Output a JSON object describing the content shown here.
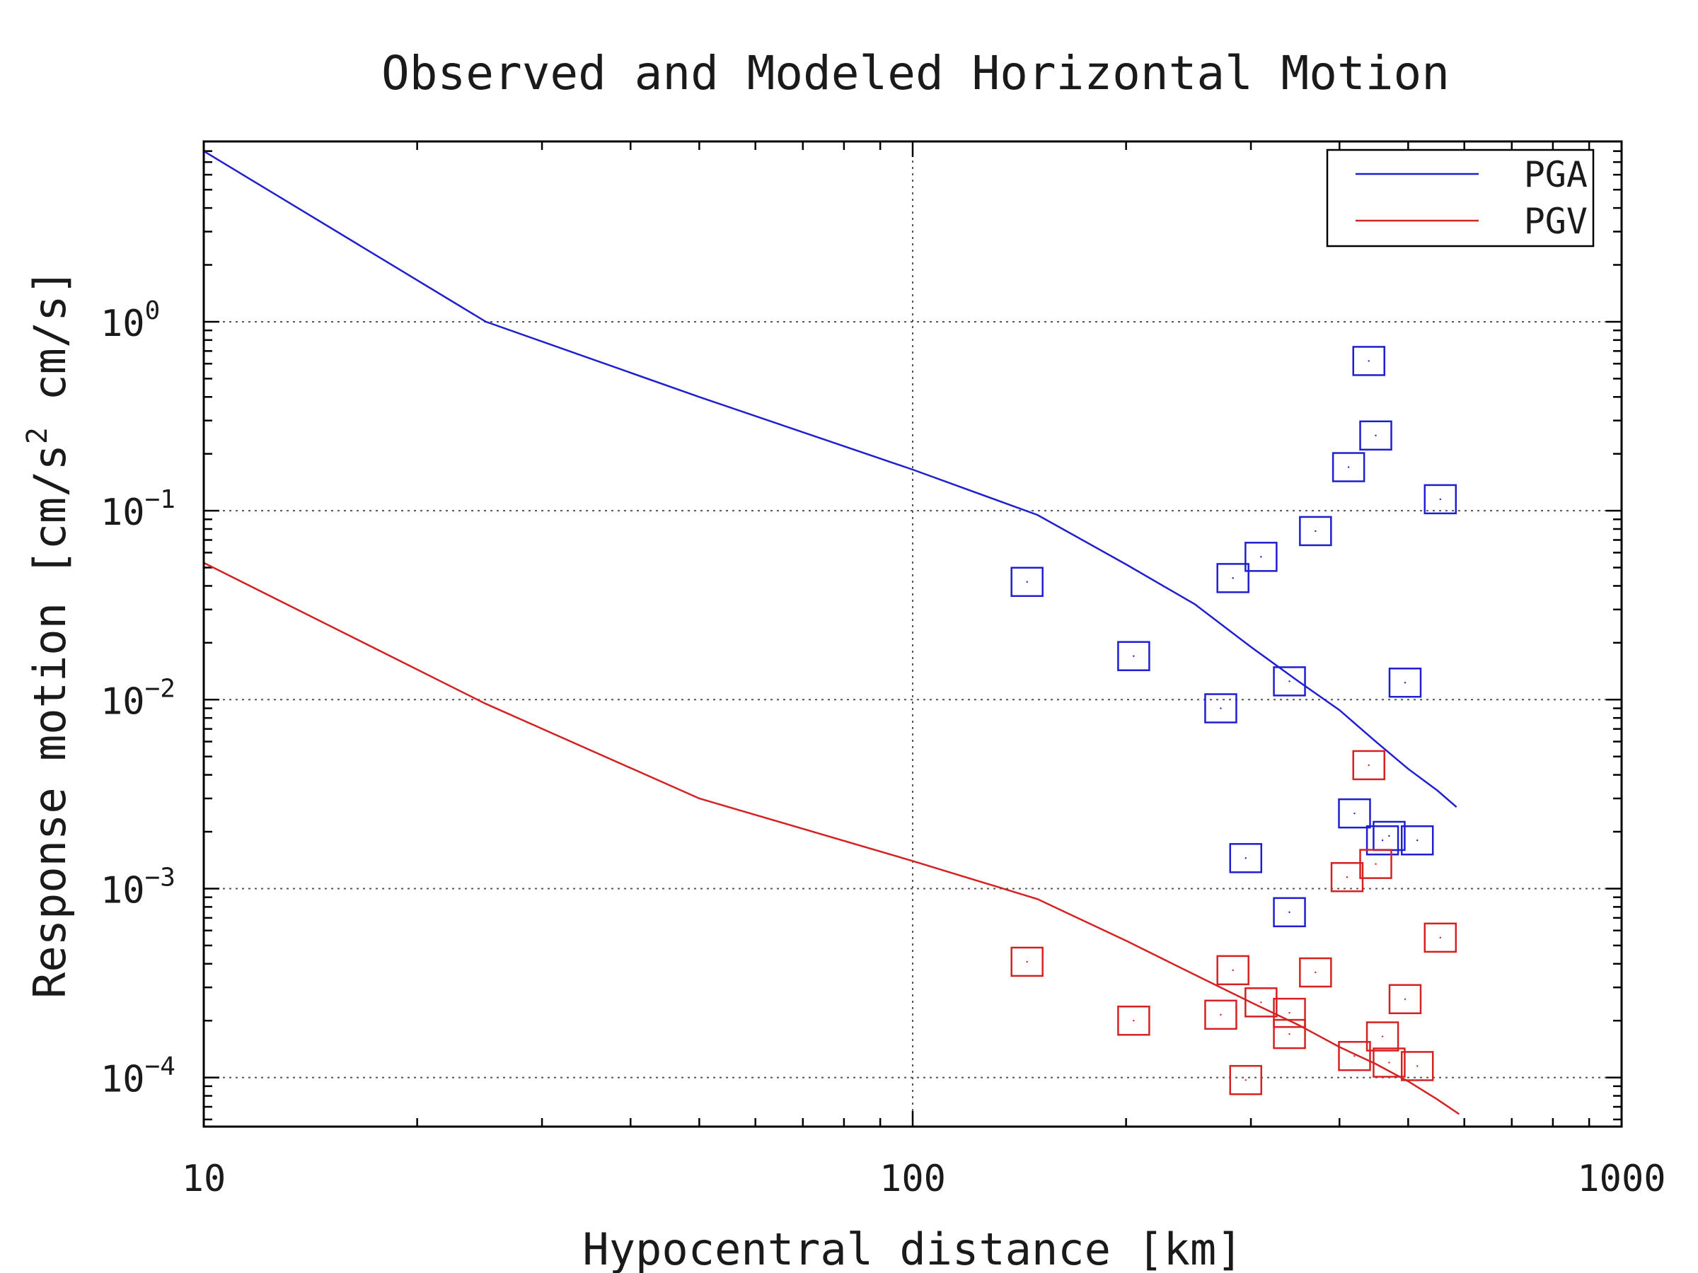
{
  "chart_data": {
    "type": "scatter",
    "title": "Observed and Modeled Horizontal Motion",
    "xlabel": "Hypocentral distance [km]",
    "ylabel": {
      "pre": "Response motion  [cm/s",
      "sup": "2",
      "post": "  cm/s]"
    },
    "x_scale": "log",
    "y_scale": "log",
    "xlim": [
      10,
      1000
    ],
    "ylim": [
      5.5e-05,
      9
    ],
    "grid": true,
    "legend_position": "top-right",
    "x_ticks": [
      {
        "value": 10,
        "label": "10"
      },
      {
        "value": 100,
        "label": "100"
      },
      {
        "value": 1000,
        "label": "1000"
      }
    ],
    "y_ticks": [
      {
        "value": 1,
        "base": "10",
        "exp": "0"
      },
      {
        "value": 0.1,
        "base": "10",
        "exp": "−1"
      },
      {
        "value": 0.01,
        "base": "10",
        "exp": "−2"
      },
      {
        "value": 0.001,
        "base": "10",
        "exp": "−3"
      },
      {
        "value": 0.0001,
        "base": "10",
        "exp": "−4"
      }
    ],
    "series": [
      {
        "name": "PGA",
        "color": "#1f1fcf",
        "line": [
          [
            10,
            8.0
          ],
          [
            25,
            1.0
          ],
          [
            50,
            0.4
          ],
          [
            100,
            0.165
          ],
          [
            150,
            0.095
          ],
          [
            200,
            0.052
          ],
          [
            250,
            0.032
          ],
          [
            300,
            0.019
          ],
          [
            350,
            0.0125
          ],
          [
            400,
            0.0088
          ],
          [
            450,
            0.006
          ],
          [
            500,
            0.0043
          ],
          [
            550,
            0.0033
          ],
          [
            585,
            0.0027
          ]
        ],
        "observed": [
          [
            145,
            0.042
          ],
          [
            205,
            0.017
          ],
          [
            272,
            0.009
          ],
          [
            283,
            0.044
          ],
          [
            310,
            0.057
          ],
          [
            340,
            0.0125
          ],
          [
            370,
            0.078
          ],
          [
            412,
            0.17
          ],
          [
            440,
            0.62
          ],
          [
            450,
            0.25
          ],
          [
            555,
            0.115
          ],
          [
            495,
            0.0123
          ],
          [
            420,
            0.0025
          ],
          [
            460,
            0.0018
          ],
          [
            470,
            0.0019
          ],
          [
            515,
            0.0018
          ],
          [
            295,
            0.00145
          ],
          [
            340,
            0.00075
          ]
        ]
      },
      {
        "name": "PGV",
        "color": "#d42222",
        "line": [
          [
            10,
            0.053
          ],
          [
            25,
            0.0095
          ],
          [
            50,
            0.003
          ],
          [
            100,
            0.0014
          ],
          [
            150,
            0.00088
          ],
          [
            200,
            0.00053
          ],
          [
            250,
            0.00035
          ],
          [
            300,
            0.00025
          ],
          [
            350,
            0.00019
          ],
          [
            400,
            0.000145
          ],
          [
            450,
            0.000118
          ],
          [
            500,
            9.55e-05
          ],
          [
            550,
            7.65e-05
          ],
          [
            590,
            6.4e-05
          ]
        ],
        "observed": [
          [
            145,
            0.00041
          ],
          [
            205,
            0.0002
          ],
          [
            272,
            0.000215
          ],
          [
            283,
            0.00037
          ],
          [
            310,
            0.00025
          ],
          [
            340,
            0.00022
          ],
          [
            340,
            0.00017
          ],
          [
            370,
            0.00036
          ],
          [
            410,
            0.00115
          ],
          [
            440,
            0.0045
          ],
          [
            450,
            0.00135
          ],
          [
            495,
            0.00026
          ],
          [
            555,
            0.00055
          ],
          [
            460,
            0.000165
          ],
          [
            420,
            0.00013
          ],
          [
            470,
            0.00012
          ],
          [
            515,
            0.000115
          ],
          [
            295,
            9.7e-05
          ]
        ]
      }
    ]
  }
}
